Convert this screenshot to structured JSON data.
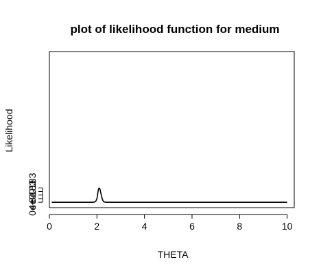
{
  "chart_data": {
    "type": "line",
    "title": "plot of likelihood function for medium",
    "xlabel": "THETA",
    "ylabel": "Likelihood",
    "xlim": [
      0,
      10.3
    ],
    "ylim": [
      -3e-183,
      8.4e-182
    ],
    "x_ticks": [
      0,
      2,
      4,
      6,
      8,
      10
    ],
    "x_tick_labels": [
      "0",
      "2",
      "4",
      "6",
      "8",
      "10"
    ],
    "y_ticks": [
      0,
      4e-183,
      8e-183
    ],
    "y_tick_labels": [
      "0e+00",
      "4e-183",
      "8e-183"
    ],
    "grid": false,
    "legend": "none",
    "color": "#000000",
    "series": [
      {
        "x": [
          0.1,
          1.6,
          1.8,
          1.9,
          1.95,
          2.0,
          2.02,
          2.05,
          2.07,
          2.1,
          2.13,
          2.15,
          2.2,
          2.25,
          2.3,
          2.4,
          3.0,
          10.0
        ],
        "y": [
          0,
          0,
          5e-186,
          1e-184,
          5e-184,
          2e-183,
          3.5e-183,
          6.2e-183,
          7.6e-183,
          7.9e-183,
          7.2e-183,
          6e-183,
          3e-183,
          9e-184,
          2e-184,
          1e-185,
          0,
          0
        ]
      }
    ]
  }
}
